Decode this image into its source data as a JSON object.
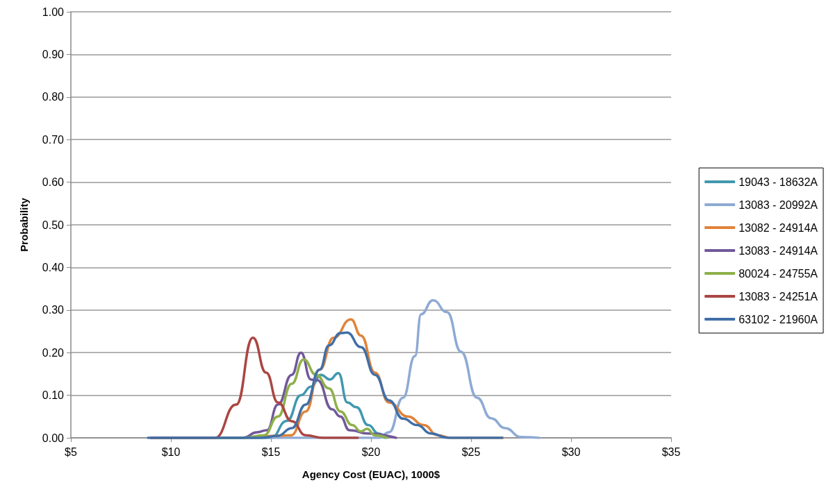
{
  "chart_data": {
    "type": "line",
    "xlabel": "Agency Cost (EUAC), 1000$",
    "ylabel": "Probability",
    "xlim": [
      5,
      35
    ],
    "xticks": [
      {
        "value": 5,
        "label": "$5"
      },
      {
        "value": 10,
        "label": "$10"
      },
      {
        "value": 15,
        "label": "$15"
      },
      {
        "value": 20,
        "label": "$20"
      },
      {
        "value": 25,
        "label": "$25"
      },
      {
        "value": 30,
        "label": "$30"
      },
      {
        "value": 35,
        "label": "$35"
      }
    ],
    "ylim": [
      0,
      1
    ],
    "yticks": [
      {
        "value": 0,
        "label": "0.00"
      },
      {
        "value": 0.1,
        "label": "0.10"
      },
      {
        "value": 0.2,
        "label": "0.20"
      },
      {
        "value": 0.3,
        "label": "0.30"
      },
      {
        "value": 0.4,
        "label": "0.40"
      },
      {
        "value": 0.5,
        "label": "0.50"
      },
      {
        "value": 0.6,
        "label": "0.60"
      },
      {
        "value": 0.7,
        "label": "0.70"
      },
      {
        "value": 0.8,
        "label": "0.80"
      },
      {
        "value": 0.9,
        "label": "0.90"
      },
      {
        "value": 1,
        "label": "1.00"
      }
    ],
    "grid": "y",
    "legend": "right",
    "marker": "none",
    "line_style": "solid",
    "series": [
      {
        "name": "19043 - 18632A",
        "color": "#4198af",
        "x": [
          9,
          15,
          15.8,
          16.5,
          17,
          17.5,
          17.95,
          18.37,
          18.82,
          19.27,
          19.86,
          20.38,
          20.7
        ],
        "values": [
          0,
          0,
          0.04,
          0.1,
          0.12,
          0.148,
          0.137,
          0.152,
          0.083,
          0.072,
          0.03,
          0.01,
          0
        ]
      },
      {
        "name": "13083 - 20992A",
        "color": "#8eaad4",
        "x": [
          15,
          20.4,
          20.9,
          21.6,
          22.2,
          22.5,
          23.1,
          23.8,
          24.5,
          25.3,
          26,
          26.7,
          27.5,
          28.4
        ],
        "values": [
          0,
          0,
          0.013,
          0.094,
          0.192,
          0.29,
          0.323,
          0.295,
          0.202,
          0.094,
          0.046,
          0.023,
          0.002,
          0
        ]
      },
      {
        "name": "13082 - 24914A",
        "color": "#e0833a",
        "x": [
          14,
          16,
          16.74,
          17.43,
          18.13,
          19,
          19.5,
          20.2,
          20.9,
          21.84,
          22.64,
          23.33,
          24,
          26.6
        ],
        "values": [
          0,
          0.006,
          0.062,
          0.16,
          0.235,
          0.278,
          0.24,
          0.153,
          0.083,
          0.05,
          0.03,
          0.006,
          0,
          0
        ]
      },
      {
        "name": "13083 - 24914A",
        "color": "#71589a",
        "x": [
          9,
          13.6,
          14.3,
          14.8,
          15.35,
          16.04,
          16.5,
          17,
          17.33,
          18.05,
          18.47,
          18.92,
          19.86,
          21.25
        ],
        "values": [
          0,
          0,
          0.013,
          0.018,
          0.078,
          0.148,
          0.2,
          0.137,
          0.135,
          0.067,
          0.05,
          0.018,
          0.01,
          0
        ]
      },
      {
        "name": "80024 - 24755A",
        "color": "#8db04a",
        "x": [
          9,
          13.6,
          14.65,
          15.35,
          16.04,
          16.63,
          17.26,
          17.9,
          18.47,
          19.06,
          19.5,
          19.8,
          20.2,
          20.8
        ],
        "values": [
          0,
          0,
          0.006,
          0.05,
          0.127,
          0.184,
          0.148,
          0.116,
          0.062,
          0.03,
          0.015,
          0.021,
          0.006,
          0
        ]
      },
      {
        "name": "13083 - 24251A",
        "color": "#aa4643",
        "x": [
          9,
          12.2,
          13.26,
          14.1,
          14.76,
          15.35,
          16.04,
          16.74,
          17.6,
          19.34
        ],
        "values": [
          0,
          0,
          0.078,
          0.235,
          0.153,
          0.083,
          0.039,
          0.006,
          0,
          0
        ]
      },
      {
        "name": "63102 - 21960A",
        "color": "#3f6fa8",
        "x": [
          8.85,
          14.5,
          15.35,
          16.04,
          16.74,
          17.43,
          17.9,
          18.47,
          18.8,
          19.5,
          20.2,
          20.9,
          21.6,
          22.3,
          23,
          23.85,
          26.56
        ],
        "values": [
          0,
          0,
          0.005,
          0.023,
          0.078,
          0.16,
          0.217,
          0.246,
          0.247,
          0.213,
          0.148,
          0.088,
          0.045,
          0.03,
          0.01,
          0,
          0
        ]
      }
    ]
  }
}
